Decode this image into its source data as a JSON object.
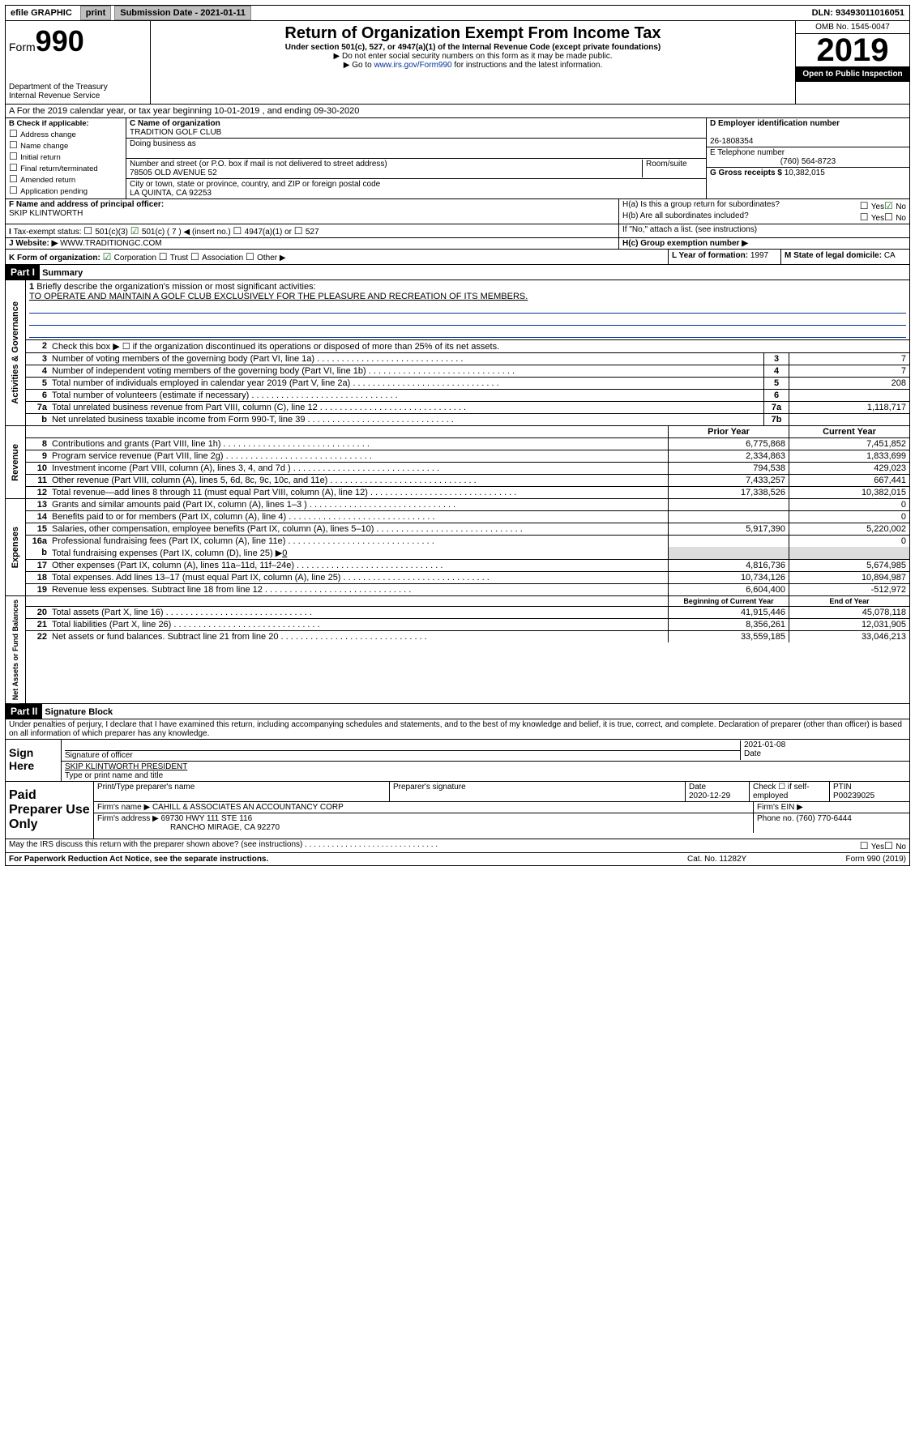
{
  "topbar": {
    "efile": "efile GRAPHIC",
    "print": "print",
    "subdate_lbl": "Submission Date - 2021-01-11",
    "dln": "DLN: 93493011016051"
  },
  "header": {
    "form_label": "Form",
    "form_no": "990",
    "dept": "Department of the Treasury\nInternal Revenue Service",
    "title": "Return of Organization Exempt From Income Tax",
    "sub1": "Under section 501(c), 527, or 4947(a)(1) of the Internal Revenue Code (except private foundations)",
    "sub2": "▶ Do not enter social security numbers on this form as it may be made public.",
    "sub3_pre": "▶ Go to ",
    "sub3_link": "www.irs.gov/Form990",
    "sub3_post": " for instructions and the latest information.",
    "omb": "OMB No. 1545-0047",
    "year": "2019",
    "opi": "Open to Public Inspection"
  },
  "period": "A For the 2019 calendar year, or tax year beginning 10-01-2019   , and ending 09-30-2020",
  "B": {
    "label": "B Check if applicable:",
    "items": [
      "Address change",
      "Name change",
      "Initial return",
      "Final return/terminated",
      "Amended return",
      "Application pending"
    ]
  },
  "C": {
    "name_lbl": "C Name of organization",
    "name": "TRADITION GOLF CLUB",
    "dba_lbl": "Doing business as",
    "addr_lbl": "Number and street (or P.O. box if mail is not delivered to street address)",
    "room_lbl": "Room/suite",
    "addr": "78505 OLD AVENUE 52",
    "city_lbl": "City or town, state or province, country, and ZIP or foreign postal code",
    "city": "LA QUINTA, CA  92253"
  },
  "D": {
    "lbl": "D Employer identification number",
    "val": "26-1808354"
  },
  "E": {
    "lbl": "E Telephone number",
    "val": "(760) 564-8723"
  },
  "G": {
    "lbl": "G Gross receipts $",
    "val": "10,382,015"
  },
  "F": {
    "lbl": "F  Name and address of principal officer:",
    "val": "SKIP KLINTWORTH"
  },
  "H": {
    "a": "H(a)  Is this a group return for subordinates?",
    "b": "H(b)  Are all subordinates included?",
    "bnote": "If \"No,\" attach a list. (see instructions)",
    "c": "H(c)  Group exemption number ▶",
    "yes": "Yes",
    "no": "No"
  },
  "I": {
    "lbl": "Tax-exempt status:",
    "c3": "501(c)(3)",
    "c": "501(c) ( 7 ) ◀ (insert no.)",
    "a": "4947(a)(1) or",
    "s527": "527"
  },
  "J": {
    "lbl": "Website: ▶",
    "val": "WWW.TRADITIONGC.COM"
  },
  "K": {
    "lbl": "K Form of organization:",
    "corp": "Corporation",
    "trust": "Trust",
    "assoc": "Association",
    "other": "Other ▶"
  },
  "L": {
    "lbl": "L Year of formation:",
    "val": "1997"
  },
  "M": {
    "lbl": "M State of legal domicile:",
    "val": "CA"
  },
  "part1": {
    "tab": "Part I",
    "title": "Summary"
  },
  "gov": {
    "side": "Activities & Governance",
    "l1": "Briefly describe the organization's mission or most significant activities:",
    "l1v": "TO OPERATE AND MAINTAIN A GOLF CLUB EXCLUSIVELY FOR THE PLEASURE AND RECREATION OF ITS MEMBERS.",
    "l2": "Check this box ▶ ☐  if the organization discontinued its operations or disposed of more than 25% of its net assets.",
    "l3": "Number of voting members of the governing body (Part VI, line 1a)",
    "l3n": "3",
    "l3v": "7",
    "l4": "Number of independent voting members of the governing body (Part VI, line 1b)",
    "l4n": "4",
    "l4v": "7",
    "l5": "Total number of individuals employed in calendar year 2019 (Part V, line 2a)",
    "l5n": "5",
    "l5v": "208",
    "l6": "Total number of volunteers (estimate if necessary)",
    "l6n": "6",
    "l6v": "",
    "l7a": "Total unrelated business revenue from Part VIII, column (C), line 12",
    "l7an": "7a",
    "l7av": "1,118,717",
    "l7b": "Net unrelated business taxable income from Form 990-T, line 39",
    "l7bn": "7b",
    "l7bv": ""
  },
  "rev": {
    "side": "Revenue",
    "py": "Prior Year",
    "cy": "Current Year",
    "rows": [
      {
        "n": "8",
        "l": "Contributions and grants (Part VIII, line 1h)",
        "p": "6,775,868",
        "c": "7,451,852"
      },
      {
        "n": "9",
        "l": "Program service revenue (Part VIII, line 2g)",
        "p": "2,334,863",
        "c": "1,833,699"
      },
      {
        "n": "10",
        "l": "Investment income (Part VIII, column (A), lines 3, 4, and 7d )",
        "p": "794,538",
        "c": "429,023"
      },
      {
        "n": "11",
        "l": "Other revenue (Part VIII, column (A), lines 5, 6d, 8c, 9c, 10c, and 11e)",
        "p": "7,433,257",
        "c": "667,441"
      },
      {
        "n": "12",
        "l": "Total revenue—add lines 8 through 11 (must equal Part VIII, column (A), line 12)",
        "p": "17,338,526",
        "c": "10,382,015"
      }
    ]
  },
  "exp": {
    "side": "Expenses",
    "rows": [
      {
        "n": "13",
        "l": "Grants and similar amounts paid (Part IX, column (A), lines 1–3 )",
        "p": "",
        "c": "0"
      },
      {
        "n": "14",
        "l": "Benefits paid to or for members (Part IX, column (A), line 4)",
        "p": "",
        "c": "0"
      },
      {
        "n": "15",
        "l": "Salaries, other compensation, employee benefits (Part IX, column (A), lines 5–10)",
        "p": "5,917,390",
        "c": "5,220,002"
      },
      {
        "n": "16a",
        "l": "Professional fundraising fees (Part IX, column (A), line 11e)",
        "p": "",
        "c": "0"
      }
    ],
    "l16b_n": "b",
    "l16b": "Total fundraising expenses (Part IX, column (D), line 25) ▶",
    "l16bv": "0",
    "rows2": [
      {
        "n": "17",
        "l": "Other expenses (Part IX, column (A), lines 11a–11d, 11f–24e)",
        "p": "4,816,736",
        "c": "5,674,985"
      },
      {
        "n": "18",
        "l": "Total expenses. Add lines 13–17 (must equal Part IX, column (A), line 25)",
        "p": "10,734,126",
        "c": "10,894,987"
      },
      {
        "n": "19",
        "l": "Revenue less expenses. Subtract line 18 from line 12",
        "p": "6,604,400",
        "c": "-512,972"
      }
    ]
  },
  "na": {
    "side": "Net Assets or Fund Balances",
    "by": "Beginning of Current Year",
    "ey": "End of Year",
    "rows": [
      {
        "n": "20",
        "l": "Total assets (Part X, line 16)",
        "p": "41,915,446",
        "c": "45,078,118"
      },
      {
        "n": "21",
        "l": "Total liabilities (Part X, line 26)",
        "p": "8,356,261",
        "c": "12,031,905"
      },
      {
        "n": "22",
        "l": "Net assets or fund balances. Subtract line 21 from line 20",
        "p": "33,559,185",
        "c": "33,046,213"
      }
    ]
  },
  "part2": {
    "tab": "Part II",
    "title": "Signature Block"
  },
  "perjury": "Under penalties of perjury, I declare that I have examined this return, including accompanying schedules and statements, and to the best of my knowledge and belief, it is true, correct, and complete. Declaration of preparer (other than officer) is based on all information of which preparer has any knowledge.",
  "sign": {
    "left": "Sign Here",
    "sig_lbl": "Signature of officer",
    "date": "2021-01-08",
    "date_lbl": "Date",
    "name": "SKIP KLINTWORTH  PRESIDENT",
    "name_lbl": "Type or print name and title"
  },
  "paid": {
    "left": "Paid Preparer Use Only",
    "h_name": "Print/Type preparer's name",
    "h_sig": "Preparer's signature",
    "h_date": "Date",
    "date": "2020-12-29",
    "h_chk": "Check ☐ if self-employed",
    "h_ptin": "PTIN",
    "ptin": "P00239025",
    "firm_lbl": "Firm's name    ▶",
    "firm": "CAHILL & ASSOCIATES AN ACCOUNTANCY CORP",
    "ein_lbl": "Firm's EIN ▶",
    "addr_lbl": "Firm's address ▶",
    "addr1": "69730 HWY 111 STE 116",
    "addr2": "RANCHO MIRAGE, CA  92270",
    "phone_lbl": "Phone no.",
    "phone": "(760) 770-6444"
  },
  "discuss": "May the IRS discuss this return with the preparer shown above? (see instructions)",
  "footer": {
    "pra": "For Paperwork Reduction Act Notice, see the separate instructions.",
    "cat": "Cat. No. 11282Y",
    "form": "Form 990 (2019)"
  }
}
